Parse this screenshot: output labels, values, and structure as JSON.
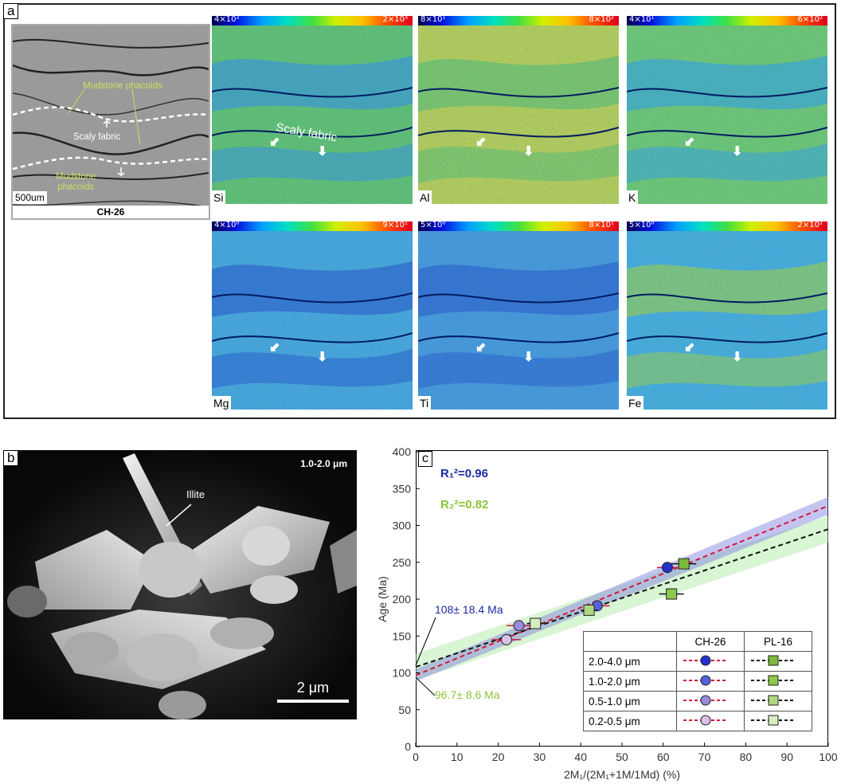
{
  "panel_a": {
    "label": "a",
    "sem": {
      "scale": "500um",
      "sample": "CH-26",
      "label_phacoids_top": "Mudstone phacoids",
      "label_scaly": "Scaly fabric",
      "label_phacoids_bottom": "Mudstone\nphacoids"
    },
    "scaly_label": "Scaly fabric",
    "maps": [
      {
        "element": "Si",
        "min": "4×10²",
        "max": "2×10³"
      },
      {
        "element": "Al",
        "min": "8×10¹",
        "max": "8×10²"
      },
      {
        "element": "K",
        "min": "4×10¹",
        "max": "6×10²"
      },
      {
        "element": "Mg",
        "min": "4×10⁰",
        "max": "9×10¹"
      },
      {
        "element": "Ti",
        "min": "5×10⁰",
        "max": "8×10¹"
      },
      {
        "element": "Fe",
        "min": "5×10⁰",
        "max": "2×10²"
      }
    ]
  },
  "panel_b": {
    "label": "b",
    "size_range": "1.0-2.0 μm",
    "mineral": "Illite",
    "scale": "2 μm"
  },
  "panel_c": {
    "label": "c",
    "r1": "R₁²=0.96",
    "r2": "R₂²=0.82",
    "intercept_1": "108± 18.4 Ma",
    "intercept_2": "96.7± 8.6 Ma",
    "legend": {
      "col1": "CH-26",
      "col2": "PL-16",
      "rows": [
        "2.0-4.0 μm",
        "1.0-2.0 μm",
        "0.5-1.0 μm",
        "0.2-0.5 μm"
      ]
    },
    "colors": {
      "ch26_line": "#d4183c",
      "pl16_line": "#111111",
      "ch26_band": "#7c7ce0",
      "pl16_band": "#a8e8a0"
    }
  },
  "chart_data": {
    "type": "scatter",
    "xlabel": "2M₁/(2M₁+1M/1Md) (%)",
    "ylabel": "Age (Ma)",
    "xlim": [
      0,
      100
    ],
    "ylim": [
      0,
      400
    ],
    "xticks": [
      0,
      10,
      20,
      30,
      40,
      50,
      60,
      70,
      80,
      90,
      100
    ],
    "yticks": [
      0,
      50,
      100,
      150,
      200,
      250,
      300,
      350,
      400
    ],
    "series": [
      {
        "name": "CH-26",
        "x": [
          22,
          25,
          44,
          61
        ],
        "y": [
          145,
          164,
          191,
          243
        ],
        "xerr": [
          3.5,
          3,
          3,
          2.5
        ],
        "fit": {
          "intercept": 96.7,
          "slope": 2.3
        }
      },
      {
        "name": "PL-16",
        "x": [
          29,
          42,
          62,
          65
        ],
        "y": [
          167,
          185,
          207,
          248
        ],
        "xerr": [
          2,
          2,
          3,
          3
        ],
        "fit": {
          "intercept": 108,
          "slope": 1.87
        }
      }
    ]
  }
}
